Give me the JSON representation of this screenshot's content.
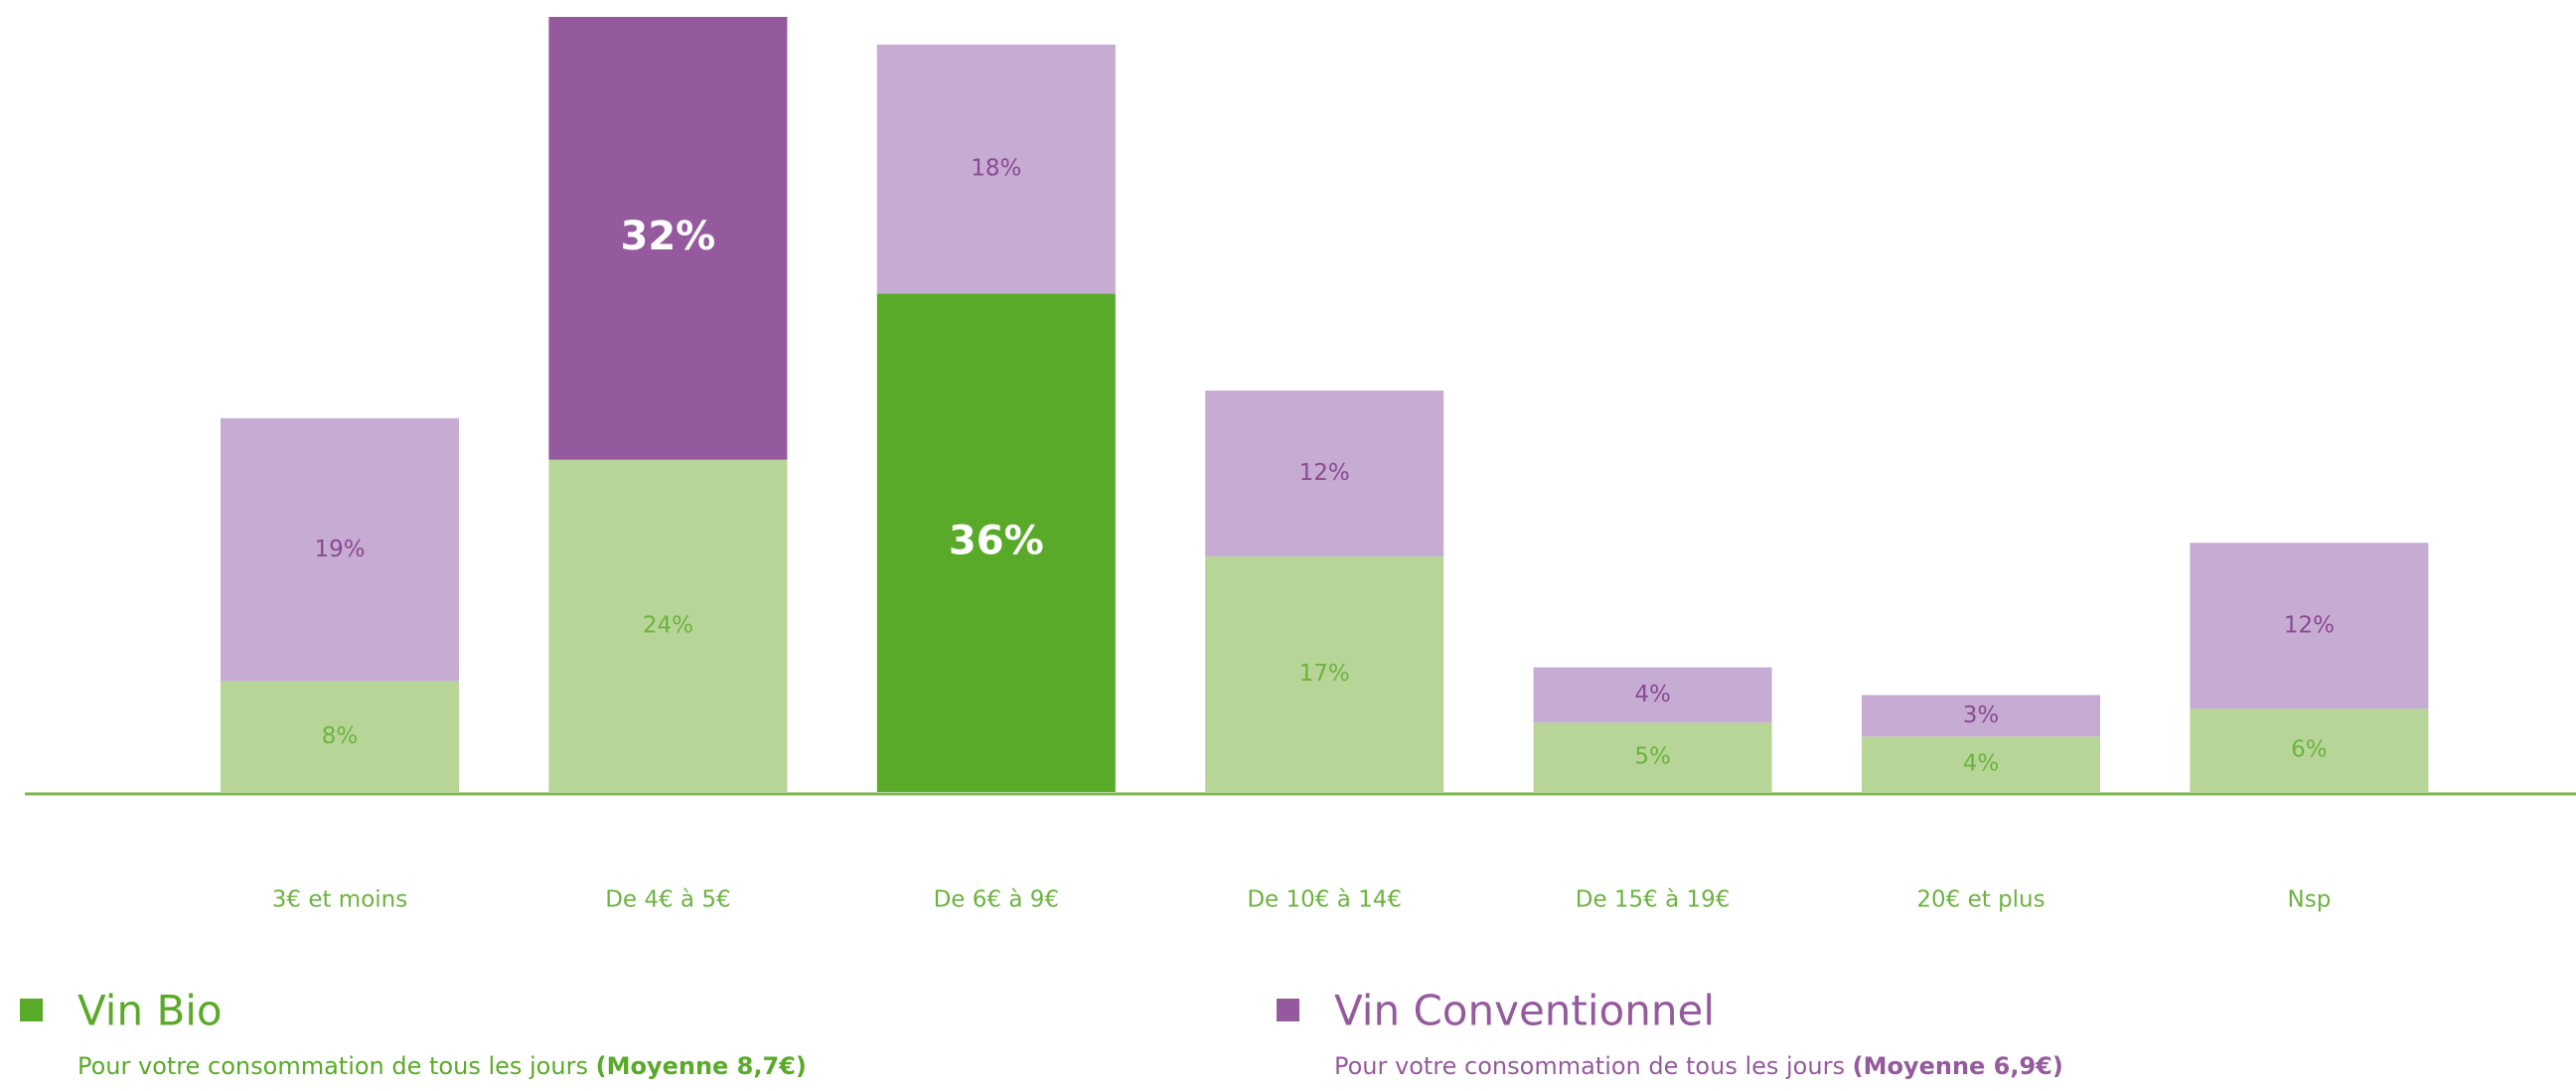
{
  "chart_data": {
    "type": "stacked_bar",
    "categories": [
      "3€ et moins",
      "De 4€ à 5€",
      "De 6€ à 9€",
      "De 10€ à 14€",
      "De 15€ à 19€",
      "20€ et plus",
      "Nsp"
    ],
    "series": [
      {
        "name": "Vin Bio",
        "subtitle": "Pour votre consommation de tous les jours",
        "subtitle_bold": "(Moyenne 8,7€)",
        "color": "#b8d598",
        "label_color": "#6cb33f",
        "colors": [
          "#b8d598",
          "#b8d598",
          "#5aaa2a",
          "#b8d598",
          "#b8d598",
          "#b8d598",
          "#b8d598"
        ],
        "legend_color": "#5aaa2a",
        "values": [
          8,
          24,
          36,
          17,
          5,
          4,
          6
        ],
        "value_labels": [
          "8%",
          "24%",
          "36%",
          "17%",
          "5%",
          "4%",
          "6%"
        ]
      },
      {
        "name": "Vin Conventionnel",
        "subtitle": "Pour votre consommation de tous les jours",
        "subtitle_bold": "(Moyenne 6,9€)",
        "color": "#c6abd2",
        "label_color": "#8a4a92",
        "colors": [
          "#c6abd2",
          "#955a9d",
          "#c6abd2",
          "#c6abd2",
          "#c6abd2",
          "#c6abd2",
          "#c6abd2"
        ],
        "legend_color": "#955a9d",
        "values": [
          19,
          32,
          18,
          12,
          4,
          3,
          12
        ],
        "value_labels": [
          "19%",
          "32%",
          "18%",
          "12%",
          "4%",
          "3%",
          "12%"
        ]
      }
    ]
  }
}
